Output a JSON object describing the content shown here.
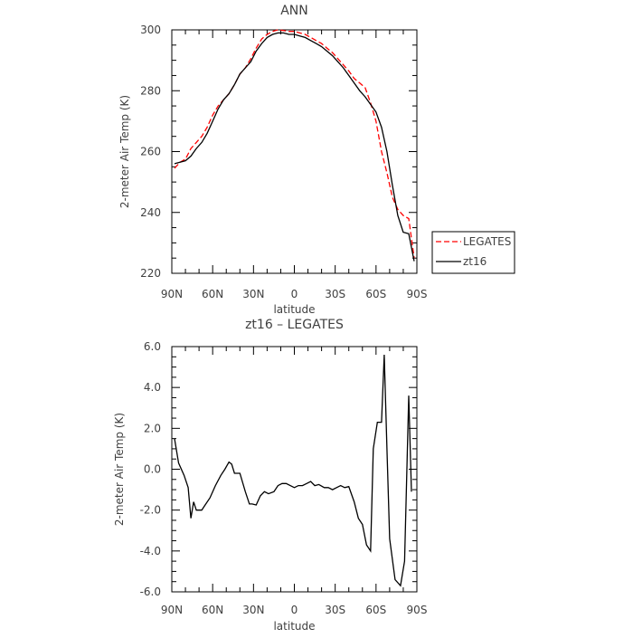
{
  "chart_data": [
    {
      "type": "line",
      "title": "ANN",
      "xlabel": "latitude",
      "ylabel": "2-meter Air Temp (K)",
      "x_ticks": [
        {
          "value": 90,
          "label": "90N"
        },
        {
          "value": 60,
          "label": "60N"
        },
        {
          "value": 30,
          "label": "30N"
        },
        {
          "value": 0,
          "label": "0"
        },
        {
          "value": -30,
          "label": "30S"
        },
        {
          "value": -60,
          "label": "60S"
        },
        {
          "value": -90,
          "label": "90S"
        }
      ],
      "xlim": [
        90,
        -90
      ],
      "ylim": [
        220,
        300
      ],
      "y_ticks": [
        220,
        240,
        260,
        280,
        300
      ],
      "legend_position": "right-bottom, outside plot",
      "series": [
        {
          "name": "LEGATES",
          "color": "#ff0000",
          "style": "dashed",
          "x": [
            88,
            84,
            80,
            76,
            72,
            68,
            64,
            60,
            56,
            52,
            48,
            44,
            40,
            36,
            32,
            28,
            24,
            20,
            16,
            12,
            8,
            4,
            0,
            -4,
            -8,
            -12,
            -16,
            -20,
            -24,
            -28,
            -32,
            -36,
            -40,
            -44,
            -48,
            -52,
            -56,
            -60,
            -64,
            -68,
            -72,
            -76,
            -80,
            -84,
            -88
          ],
          "values": [
            254.5,
            256.5,
            257.5,
            261,
            263,
            265,
            268,
            272,
            275,
            277,
            279,
            282,
            285.5,
            287.5,
            290.5,
            294,
            297,
            298.5,
            299.5,
            300,
            299.8,
            299.5,
            299.5,
            299,
            298.5,
            297.5,
            296.5,
            295.5,
            294,
            292.5,
            290.5,
            288.5,
            286.5,
            284,
            282.5,
            281,
            276,
            270,
            260,
            253,
            245,
            241,
            239,
            238,
            225
          ]
        },
        {
          "name": "zt16",
          "color": "#000000",
          "style": "solid",
          "x": [
            88,
            84,
            80,
            76,
            72,
            68,
            64,
            60,
            56,
            52,
            48,
            44,
            40,
            36,
            32,
            28,
            24,
            20,
            16,
            12,
            8,
            4,
            0,
            -4,
            -8,
            -12,
            -16,
            -20,
            -24,
            -28,
            -32,
            -36,
            -40,
            -44,
            -48,
            -52,
            -56,
            -60,
            -64,
            -68,
            -72,
            -76,
            -80,
            -84,
            -88
          ],
          "values": [
            256,
            256.5,
            257,
            258.5,
            261,
            263,
            266,
            270,
            274,
            277,
            279,
            282,
            285.5,
            287.5,
            289.5,
            293,
            295.5,
            297.5,
            298.5,
            299,
            299,
            298.5,
            298.5,
            298,
            297.5,
            296.5,
            295.5,
            294.5,
            293,
            291.5,
            289.5,
            287.5,
            285,
            282.5,
            280,
            278,
            275.5,
            273,
            268,
            260,
            249,
            239,
            233.5,
            233,
            224
          ]
        }
      ]
    },
    {
      "type": "line",
      "title": "zt16 – LEGATES",
      "xlabel": "latitude",
      "ylabel": "2-meter Air Temp (K)",
      "x_ticks": [
        {
          "value": 90,
          "label": "90N"
        },
        {
          "value": 60,
          "label": "60N"
        },
        {
          "value": 30,
          "label": "30N"
        },
        {
          "value": 0,
          "label": "0"
        },
        {
          "value": -30,
          "label": "30S"
        },
        {
          "value": -60,
          "label": "60S"
        },
        {
          "value": -90,
          "label": "90S"
        }
      ],
      "xlim": [
        90,
        -90
      ],
      "ylim": [
        -6,
        6
      ],
      "y_ticks": [
        {
          "value": -6,
          "label": "-6.0"
        },
        {
          "value": -4,
          "label": "-4.0"
        },
        {
          "value": -2,
          "label": "-2.0"
        },
        {
          "value": 0,
          "label": "0.0"
        },
        {
          "value": 2,
          "label": "2.0"
        },
        {
          "value": 4,
          "label": "4.0"
        },
        {
          "value": 6,
          "label": "6.0"
        }
      ],
      "series": [
        {
          "color": "#000000",
          "style": "solid",
          "x": [
            88,
            85,
            81,
            78,
            76,
            74,
            72,
            70,
            68,
            66,
            62,
            58,
            54,
            51,
            48,
            46,
            44,
            40,
            36,
            33,
            31,
            28,
            25,
            22,
            19,
            15,
            12,
            9,
            6,
            3,
            0,
            -3,
            -6,
            -9,
            -12,
            -15,
            -18,
            -22,
            -25,
            -28,
            -31,
            -34,
            -37,
            -40,
            -44,
            -47,
            -50,
            -53,
            -56,
            -58,
            -61,
            -64,
            -66,
            -68,
            -70,
            -74,
            -78,
            -81,
            -84,
            -86
          ],
          "values": [
            1.5,
            0.3,
            -0.3,
            -0.9,
            -2.4,
            -1.6,
            -2.0,
            -2.0,
            -2.0,
            -1.8,
            -1.4,
            -0.8,
            -0.3,
            0.0,
            0.35,
            0.25,
            -0.2,
            -0.2,
            -1.1,
            -1.7,
            -1.7,
            -1.75,
            -1.3,
            -1.1,
            -1.2,
            -1.1,
            -0.8,
            -0.7,
            -0.7,
            -0.8,
            -0.9,
            -0.8,
            -0.8,
            -0.7,
            -0.6,
            -0.8,
            -0.75,
            -0.9,
            -0.9,
            -1.0,
            -0.9,
            -0.8,
            -0.9,
            -0.85,
            -1.6,
            -2.4,
            -2.7,
            -3.7,
            -4.0,
            1.0,
            2.3,
            2.3,
            5.6,
            1.0,
            -3.4,
            -5.4,
            -5.7,
            -4.5,
            3.6,
            -1.1
          ]
        }
      ]
    }
  ]
}
